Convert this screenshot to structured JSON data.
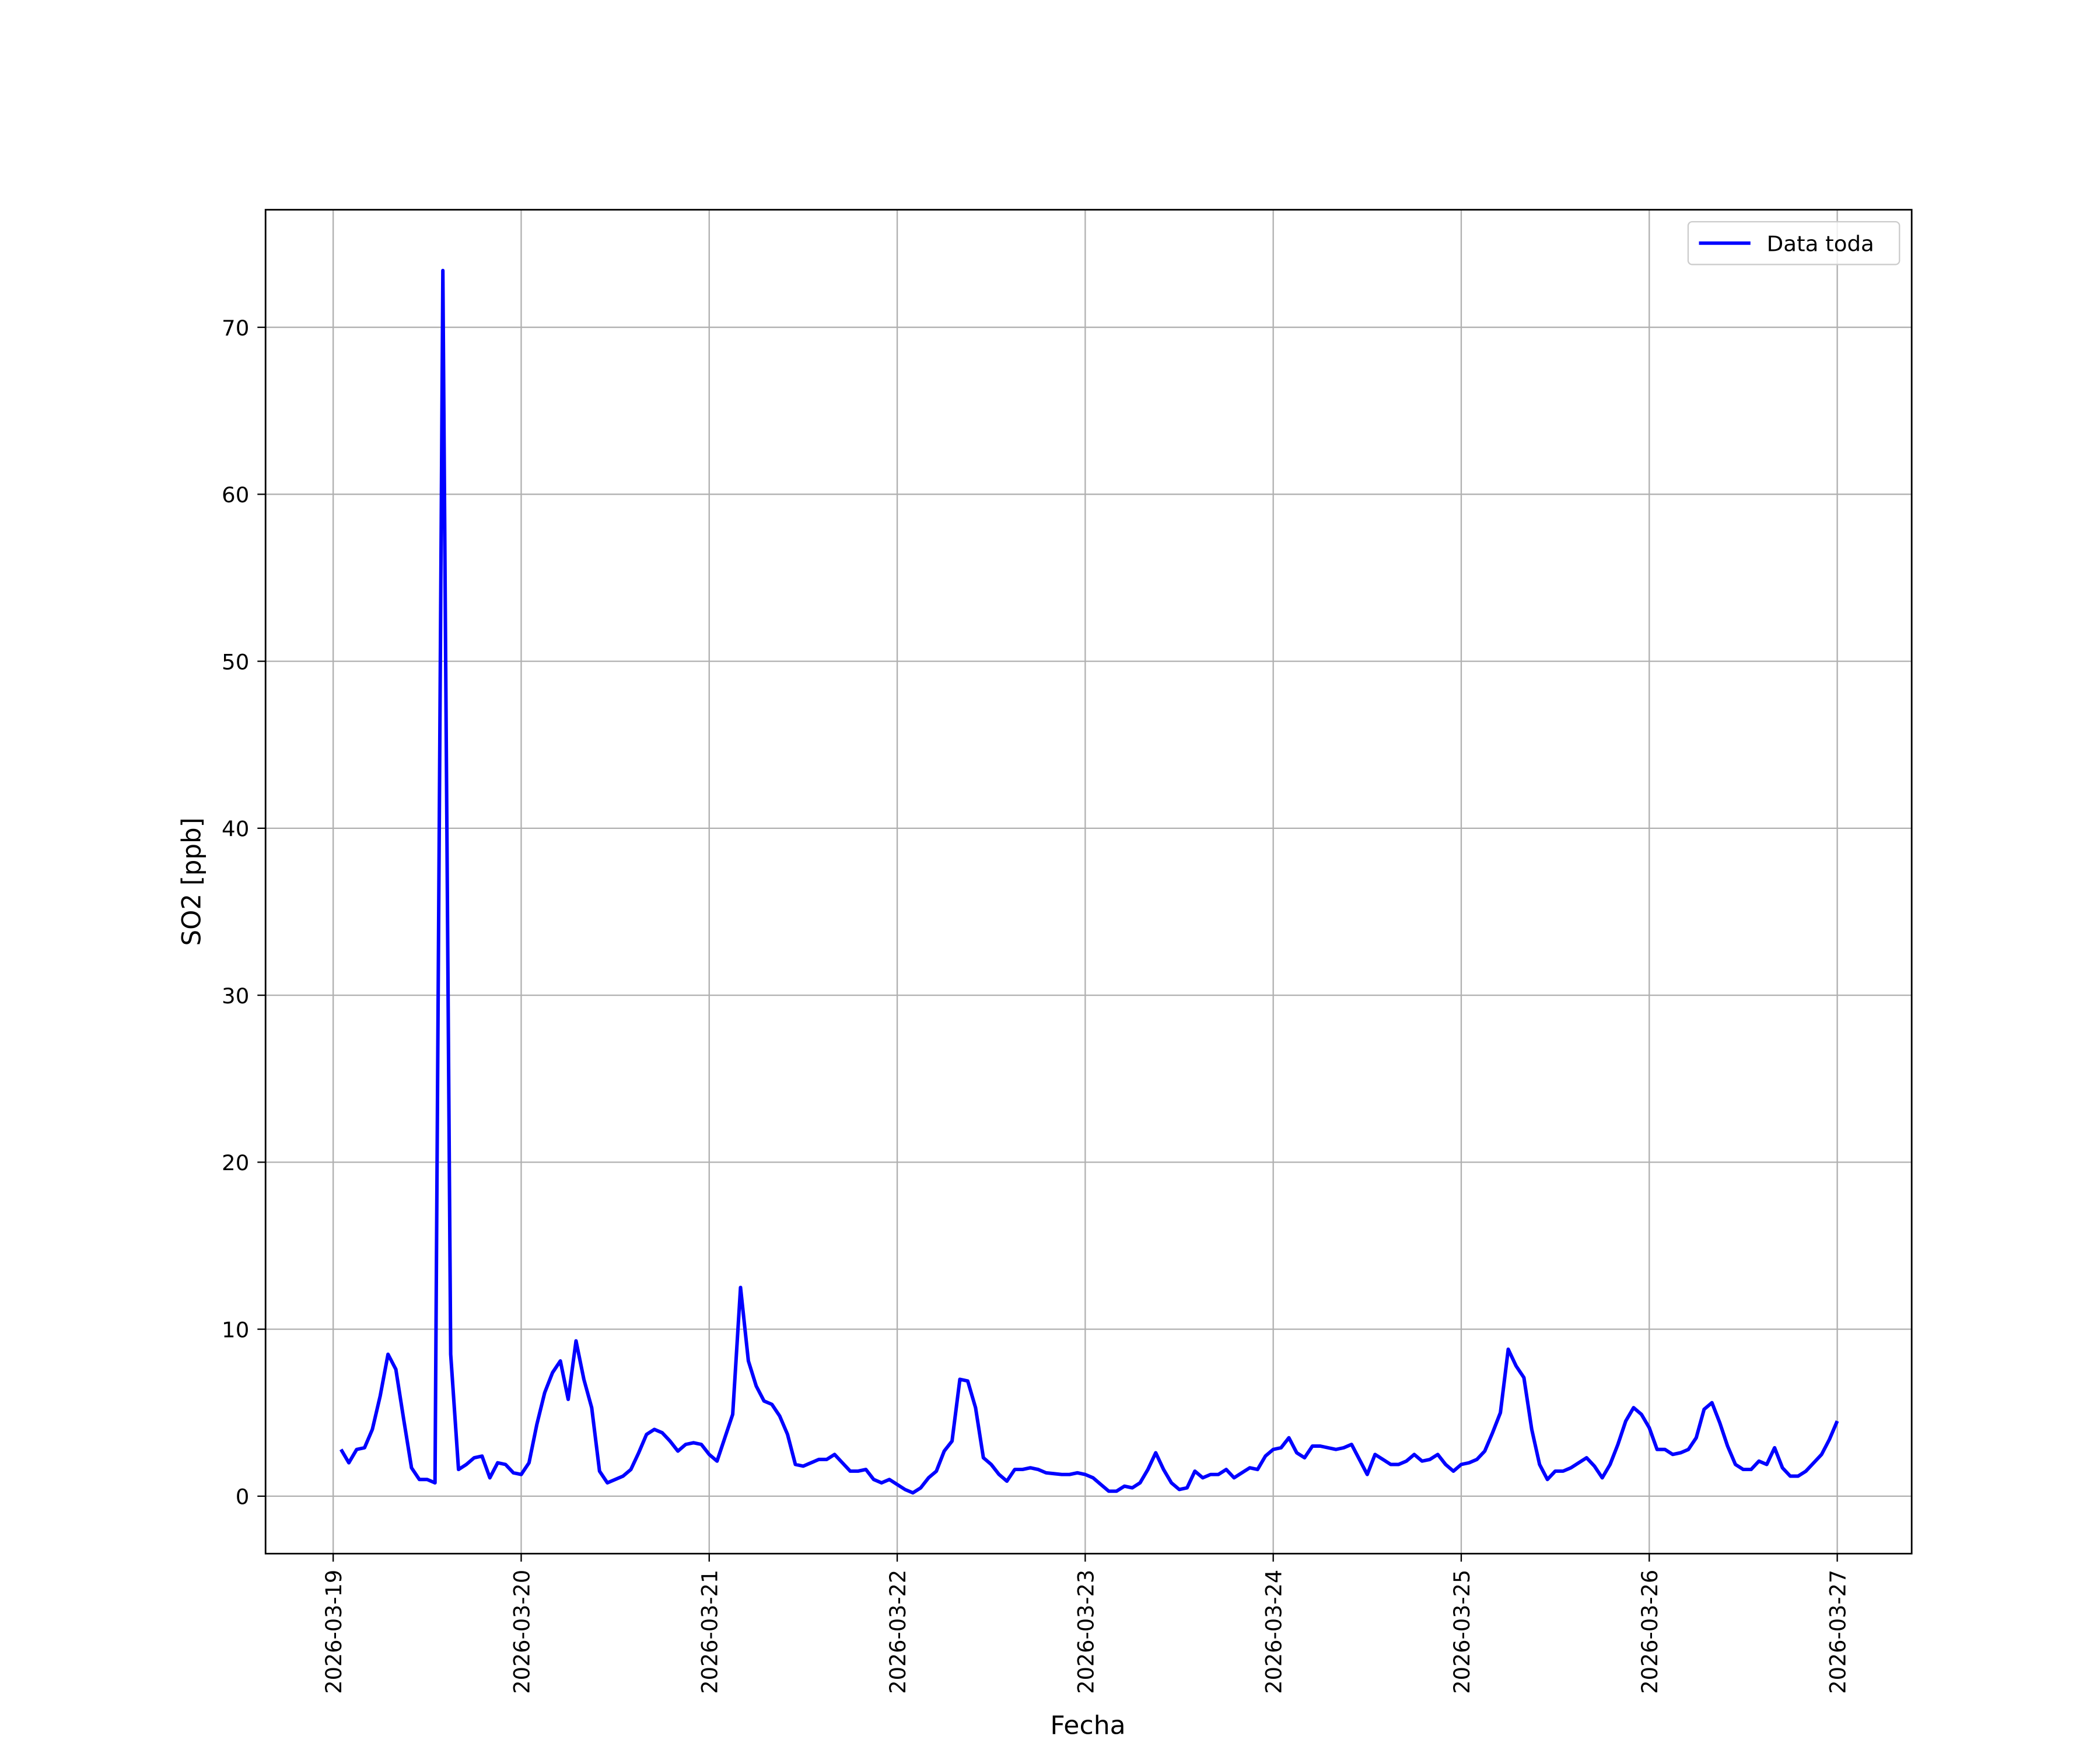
{
  "chart_data": {
    "type": "line",
    "x_label": "Fecha",
    "y_label": "SO2 [ppb]",
    "x": [
      "2026-03-19 01:00",
      "2026-03-19 02:00",
      "2026-03-19 03:00",
      "2026-03-19 04:00",
      "2026-03-19 05:00",
      "2026-03-19 06:00",
      "2026-03-19 07:00",
      "2026-03-19 08:00",
      "2026-03-19 09:00",
      "2026-03-19 10:00",
      "2026-03-19 11:00",
      "2026-03-19 12:00",
      "2026-03-19 13:00",
      "2026-03-19 14:00",
      "2026-03-19 15:00",
      "2026-03-19 16:00",
      "2026-03-19 17:00",
      "2026-03-19 18:00",
      "2026-03-19 19:00",
      "2026-03-19 20:00",
      "2026-03-19 21:00",
      "2026-03-19 22:00",
      "2026-03-19 23:00",
      "2026-03-20 00:00",
      "2026-03-20 01:00",
      "2026-03-20 02:00",
      "2026-03-20 03:00",
      "2026-03-20 04:00",
      "2026-03-20 05:00",
      "2026-03-20 06:00",
      "2026-03-20 07:00",
      "2026-03-20 08:00",
      "2026-03-20 09:00",
      "2026-03-20 10:00",
      "2026-03-20 11:00",
      "2026-03-20 12:00",
      "2026-03-20 13:00",
      "2026-03-20 14:00",
      "2026-03-20 15:00",
      "2026-03-20 16:00",
      "2026-03-20 17:00",
      "2026-03-20 18:00",
      "2026-03-20 19:00",
      "2026-03-20 20:00",
      "2026-03-20 21:00",
      "2026-03-20 22:00",
      "2026-03-20 23:00",
      "2026-03-21 00:00",
      "2026-03-21 01:00",
      "2026-03-21 02:00",
      "2026-03-21 03:00",
      "2026-03-21 04:00",
      "2026-03-21 05:00",
      "2026-03-21 06:00",
      "2026-03-21 07:00",
      "2026-03-21 08:00",
      "2026-03-21 09:00",
      "2026-03-21 10:00",
      "2026-03-21 11:00",
      "2026-03-21 12:00",
      "2026-03-21 13:00",
      "2026-03-21 14:00",
      "2026-03-21 15:00",
      "2026-03-21 16:00",
      "2026-03-21 17:00",
      "2026-03-21 18:00",
      "2026-03-21 19:00",
      "2026-03-21 20:00",
      "2026-03-21 21:00",
      "2026-03-21 22:00",
      "2026-03-21 23:00",
      "2026-03-22 00:00",
      "2026-03-22 01:00",
      "2026-03-22 02:00",
      "2026-03-22 03:00",
      "2026-03-22 04:00",
      "2026-03-22 05:00",
      "2026-03-22 06:00",
      "2026-03-22 07:00",
      "2026-03-22 08:00",
      "2026-03-22 09:00",
      "2026-03-22 10:00",
      "2026-03-22 11:00",
      "2026-03-22 12:00",
      "2026-03-22 13:00",
      "2026-03-22 14:00",
      "2026-03-22 15:00",
      "2026-03-22 16:00",
      "2026-03-22 17:00",
      "2026-03-22 18:00",
      "2026-03-22 19:00",
      "2026-03-22 20:00",
      "2026-03-22 21:00",
      "2026-03-22 22:00",
      "2026-03-22 23:00",
      "2026-03-23 00:00",
      "2026-03-23 01:00",
      "2026-03-23 02:00",
      "2026-03-23 03:00",
      "2026-03-23 04:00",
      "2026-03-23 05:00",
      "2026-03-23 06:00",
      "2026-03-23 07:00",
      "2026-03-23 08:00",
      "2026-03-23 09:00",
      "2026-03-23 10:00",
      "2026-03-23 11:00",
      "2026-03-23 12:00",
      "2026-03-23 13:00",
      "2026-03-23 14:00",
      "2026-03-23 15:00",
      "2026-03-23 16:00",
      "2026-03-23 17:00",
      "2026-03-23 18:00",
      "2026-03-23 19:00",
      "2026-03-23 20:00",
      "2026-03-23 21:00",
      "2026-03-23 22:00",
      "2026-03-23 23:00",
      "2026-03-24 00:00",
      "2026-03-24 01:00",
      "2026-03-24 02:00",
      "2026-03-24 03:00",
      "2026-03-24 04:00",
      "2026-03-24 05:00",
      "2026-03-24 06:00",
      "2026-03-24 07:00",
      "2026-03-24 08:00",
      "2026-03-24 09:00",
      "2026-03-24 10:00",
      "2026-03-24 11:00",
      "2026-03-24 12:00",
      "2026-03-24 13:00",
      "2026-03-24 14:00",
      "2026-03-24 15:00",
      "2026-03-24 16:00",
      "2026-03-24 17:00",
      "2026-03-24 18:00",
      "2026-03-24 19:00",
      "2026-03-24 20:00",
      "2026-03-24 21:00",
      "2026-03-24 22:00",
      "2026-03-24 23:00",
      "2026-03-25 00:00",
      "2026-03-25 01:00",
      "2026-03-25 02:00",
      "2026-03-25 03:00",
      "2026-03-25 04:00",
      "2026-03-25 05:00",
      "2026-03-25 06:00",
      "2026-03-25 07:00",
      "2026-03-25 08:00",
      "2026-03-25 09:00",
      "2026-03-25 10:00",
      "2026-03-25 11:00",
      "2026-03-25 12:00",
      "2026-03-25 13:00",
      "2026-03-25 14:00",
      "2026-03-25 15:00",
      "2026-03-25 16:00",
      "2026-03-25 17:00",
      "2026-03-25 18:00",
      "2026-03-25 19:00",
      "2026-03-25 20:00",
      "2026-03-25 21:00",
      "2026-03-25 22:00",
      "2026-03-25 23:00",
      "2026-03-26 00:00",
      "2026-03-26 01:00",
      "2026-03-26 02:00",
      "2026-03-26 03:00",
      "2026-03-26 04:00",
      "2026-03-26 05:00",
      "2026-03-26 06:00",
      "2026-03-26 07:00",
      "2026-03-26 08:00",
      "2026-03-26 09:00",
      "2026-03-26 10:00",
      "2026-03-26 11:00",
      "2026-03-26 12:00",
      "2026-03-26 13:00",
      "2026-03-26 14:00",
      "2026-03-26 15:00",
      "2026-03-26 16:00",
      "2026-03-26 17:00",
      "2026-03-26 18:00",
      "2026-03-26 19:00",
      "2026-03-26 20:00",
      "2026-03-26 21:00",
      "2026-03-26 22:00",
      "2026-03-26 23:00",
      "2026-03-27 00:00"
    ],
    "series": [
      {
        "name": "Data toda",
        "color": "#0000ff",
        "values": [
          2.8,
          2.0,
          2.8,
          2.9,
          4.0,
          6.0,
          8.5,
          7.6,
          4.6,
          1.7,
          1.0,
          1.0,
          0.8,
          73.4,
          8.5,
          1.6,
          1.9,
          2.3,
          2.4,
          1.1,
          2.0,
          1.9,
          1.4,
          1.3,
          2.0,
          4.3,
          6.2,
          7.4,
          8.1,
          5.8,
          9.3,
          7.0,
          5.3,
          1.5,
          0.8,
          1.0,
          1.2,
          1.6,
          2.6,
          3.7,
          4.0,
          3.8,
          3.3,
          2.7,
          3.1,
          3.2,
          3.1,
          2.5,
          2.1,
          3.5,
          4.9,
          12.5,
          8.1,
          6.6,
          5.7,
          5.5,
          4.8,
          3.7,
          1.9,
          1.8,
          2.0,
          2.2,
          2.2,
          2.5,
          2.0,
          1.5,
          1.5,
          1.6,
          1.0,
          0.8,
          1.0,
          0.7,
          0.4,
          0.2,
          0.5,
          1.1,
          1.5,
          2.7,
          3.3,
          7.0,
          6.9,
          5.3,
          2.3,
          1.9,
          1.3,
          0.9,
          1.6,
          1.6,
          1.7,
          1.6,
          1.4,
          1.35,
          1.3,
          1.3,
          1.4,
          1.3,
          1.1,
          0.7,
          0.3,
          0.3,
          0.6,
          0.5,
          0.8,
          1.6,
          2.6,
          1.6,
          0.8,
          0.4,
          0.5,
          1.5,
          1.1,
          1.3,
          1.3,
          1.6,
          1.1,
          1.4,
          1.7,
          1.6,
          2.4,
          2.8,
          2.9,
          3.5,
          2.6,
          2.3,
          3.0,
          3.0,
          2.9,
          2.8,
          2.9,
          3.1,
          2.2,
          1.3,
          2.5,
          2.2,
          1.9,
          1.9,
          2.1,
          2.5,
          2.1,
          2.2,
          2.5,
          1.9,
          1.5,
          1.9,
          2.0,
          2.2,
          2.7,
          3.8,
          5.0,
          8.8,
          7.8,
          7.1,
          4.0,
          1.9,
          1.0,
          1.5,
          1.5,
          1.7,
          2.0,
          2.3,
          1.8,
          1.1,
          1.9,
          3.1,
          4.5,
          5.3,
          4.9,
          4.1,
          2.8,
          2.8,
          2.5,
          2.6,
          2.8,
          3.5,
          5.2,
          5.6,
          4.4,
          3.0,
          1.9,
          1.6,
          1.6,
          2.1,
          1.9,
          2.9,
          1.7,
          1.2,
          1.2,
          1.5,
          2.0,
          2.5,
          3.4,
          4.5
        ]
      }
    ],
    "xlim": [
      "2026-03-18 15:22",
      "2026-03-27 09:30"
    ],
    "xticks": [
      "2026-03-19",
      "2026-03-20",
      "2026-03-21",
      "2026-03-22",
      "2026-03-23",
      "2026-03-24",
      "2026-03-25",
      "2026-03-26",
      "2026-03-27"
    ],
    "ylim": [
      -3.44,
      77.04
    ],
    "yticks": [
      0,
      10,
      20,
      30,
      40,
      50,
      60,
      70
    ],
    "grid": true,
    "legend": "upper right"
  }
}
